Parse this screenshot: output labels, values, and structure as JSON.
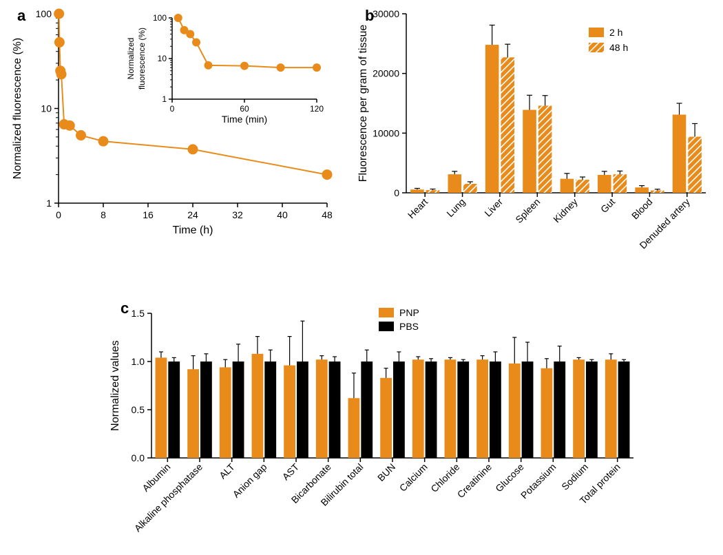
{
  "global": {
    "accent_color": "#e88b1a",
    "black": "#000000",
    "white": "#ffffff",
    "axis_stroke_width": 1.5,
    "marker_stroke_width": 1.5
  },
  "panel_a": {
    "label": "a",
    "type": "line+scatter (log-y)",
    "xlabel": "Time (h)",
    "ylabel": "Normalized fluorescence (%)",
    "xlim": [
      0,
      48
    ],
    "xticks": [
      0,
      8,
      16,
      24,
      32,
      40,
      48
    ],
    "ylim_log": [
      1,
      100
    ],
    "yticks_log": [
      1,
      10,
      100
    ],
    "yticks_labels": [
      "1",
      "10",
      "100"
    ],
    "marker_radius": 7,
    "line_width": 2,
    "color": "#e88b1a",
    "points": [
      {
        "x": 0.08,
        "y": 100
      },
      {
        "x": 0.17,
        "y": 50
      },
      {
        "x": 0.33,
        "y": 25
      },
      {
        "x": 0.5,
        "y": 23
      },
      {
        "x": 1,
        "y": 6.8
      },
      {
        "x": 2,
        "y": 6.6
      },
      {
        "x": 4,
        "y": 5.2
      },
      {
        "x": 8,
        "y": 4.5
      },
      {
        "x": 24,
        "y": 3.7
      },
      {
        "x": 48,
        "y": 2.0
      }
    ],
    "inset": {
      "xlabel": "Time (min)",
      "ylabel": "Normalized\nfluorescence (%)",
      "xlim": [
        0,
        120
      ],
      "xticks": [
        0,
        60,
        120
      ],
      "ylim_log": [
        1,
        100
      ],
      "yticks_log": [
        1,
        10,
        100
      ],
      "yticks_labels": [
        "1",
        "10",
        "100"
      ],
      "marker_radius": 6,
      "line_width": 2,
      "color": "#e88b1a",
      "points": [
        {
          "x": 5,
          "y": 100
        },
        {
          "x": 10,
          "y": 50
        },
        {
          "x": 15,
          "y": 40
        },
        {
          "x": 20,
          "y": 25
        },
        {
          "x": 30,
          "y": 6.8
        },
        {
          "x": 60,
          "y": 6.6
        },
        {
          "x": 90,
          "y": 6.0
        },
        {
          "x": 120,
          "y": 6.0
        }
      ]
    }
  },
  "panel_b": {
    "label": "b",
    "type": "grouped bar with error bars",
    "ylabel": "Fluorescence per gram of tissue",
    "ylim": [
      0,
      30000
    ],
    "yticks": [
      0,
      10000,
      20000,
      30000
    ],
    "categories": [
      "Heart",
      "Lung",
      "Liver",
      "Spleen",
      "Kidney",
      "Gut",
      "Blood",
      "Denuded artery"
    ],
    "series": [
      {
        "name": "2 h",
        "fill": "solid",
        "color": "#e88b1a"
      },
      {
        "name": "48 h",
        "fill": "hatched",
        "color": "#e88b1a",
        "hatch_stroke": "#ffffff"
      }
    ],
    "values": {
      "2 h": [
        550,
        3100,
        24800,
        13900,
        2350,
        3000,
        900,
        13100
      ],
      "48 h": [
        450,
        1500,
        22700,
        14600,
        2200,
        3100,
        400,
        9400
      ]
    },
    "errors": {
      "2 h": [
        200,
        500,
        3300,
        2450,
        900,
        600,
        300,
        1900
      ],
      "48 h": [
        180,
        350,
        2200,
        1700,
        450,
        550,
        200,
        2200
      ]
    },
    "bar_width": 0.36,
    "group_gap": 0.28,
    "category_label_rotation": -45,
    "legend_pos": "upper-right"
  },
  "panel_c": {
    "label": "c",
    "type": "grouped bar with error bars",
    "ylabel": "Normalized values",
    "ylim": [
      0,
      1.5
    ],
    "yticks": [
      0.0,
      0.5,
      1.0,
      1.5
    ],
    "yticks_labels": [
      "0.0",
      "0.5",
      "1.0",
      "1.5"
    ],
    "categories": [
      "Albumin",
      "Alkaline phosphatase",
      "ALT",
      "Anion gap",
      "AST",
      "Bicarbonate",
      "Bilirubin total",
      "BUN",
      "Calcium",
      "Chloride",
      "Creatinine",
      "Glucose",
      "Potassium",
      "Sodium",
      "Total protein"
    ],
    "series": [
      {
        "name": "PNP",
        "color": "#e88b1a"
      },
      {
        "name": "PBS",
        "color": "#000000"
      }
    ],
    "values": {
      "PNP": [
        1.04,
        0.92,
        0.94,
        1.08,
        0.96,
        1.02,
        0.62,
        0.83,
        1.02,
        1.02,
        1.02,
        0.98,
        0.93,
        1.02,
        1.02
      ],
      "PBS": [
        1.0,
        1.0,
        1.0,
        1.0,
        1.0,
        1.0,
        1.0,
        1.0,
        1.0,
        1.0,
        1.0,
        1.0,
        1.0,
        1.0,
        1.0
      ]
    },
    "errors": {
      "PNP": [
        0.06,
        0.14,
        0.08,
        0.18,
        0.3,
        0.04,
        0.26,
        0.1,
        0.03,
        0.02,
        0.04,
        0.27,
        0.1,
        0.02,
        0.06
      ],
      "PBS": [
        0.04,
        0.08,
        0.18,
        0.12,
        0.42,
        0.05,
        0.12,
        0.1,
        0.03,
        0.02,
        0.1,
        0.2,
        0.16,
        0.02,
        0.02
      ]
    },
    "bar_width": 0.36,
    "group_gap": 0.28,
    "category_label_rotation": -45,
    "legend_pos": "top"
  }
}
